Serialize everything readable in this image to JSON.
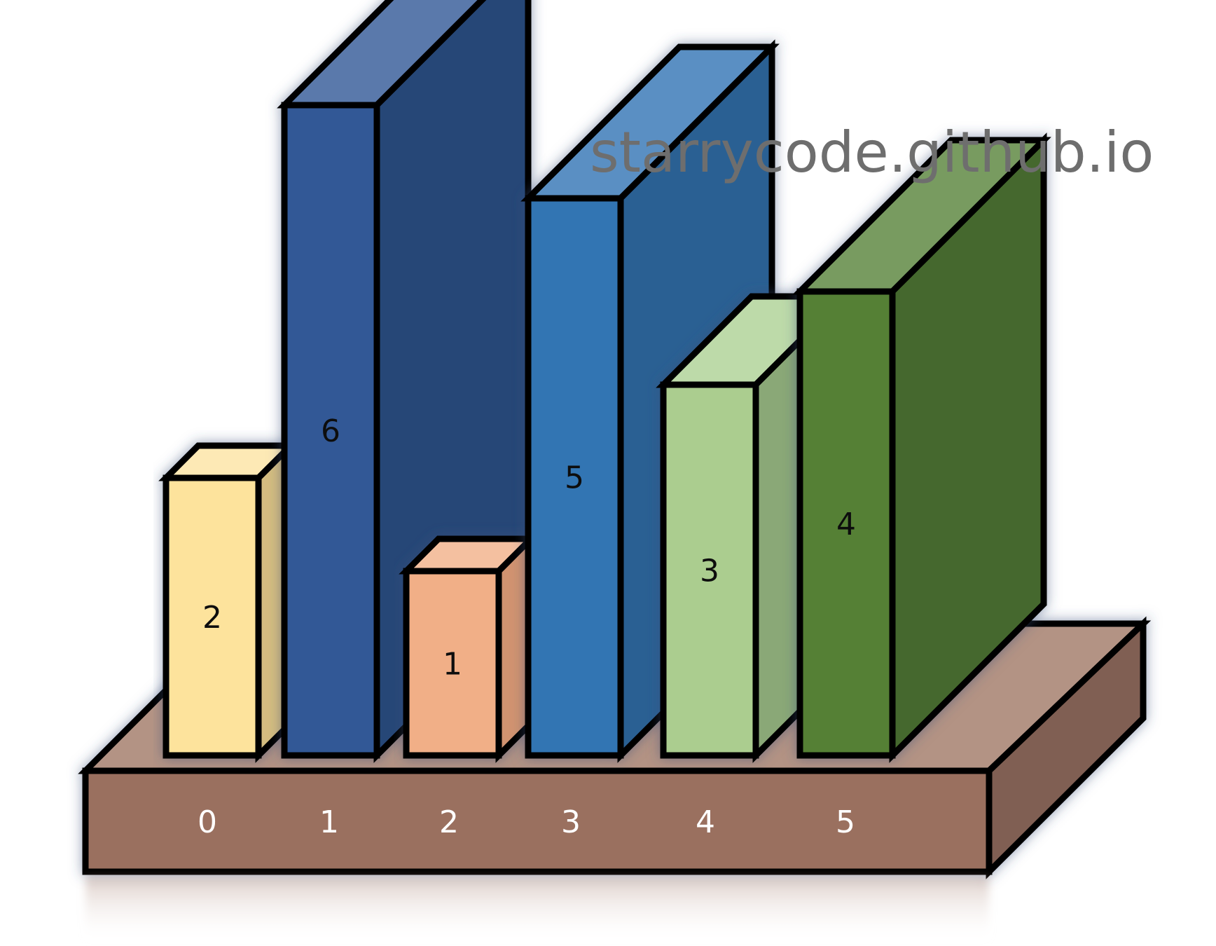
{
  "watermark": "starrycode.github.io",
  "colors": {
    "base_top": "#b39384",
    "base_front": "#9a6f5e",
    "base_side": "#805e52",
    "outline": "#000000"
  },
  "bars": [
    {
      "index": "0",
      "value": 2,
      "label": "2",
      "front": "#fde39c",
      "top": "#fde9b5",
      "side": "#d5bd80"
    },
    {
      "index": "1",
      "value": 6,
      "label": "6",
      "front": "#315896",
      "top": "#5a79ab",
      "side": "#284677"
    },
    {
      "index": "2",
      "value": 1,
      "label": "1",
      "front": "#f1af87",
      "top": "#f4c0a0",
      "side": "#d19370"
    },
    {
      "index": "3",
      "value": 5,
      "label": "5",
      "front": "#3274b3",
      "top": "#5a8fc3",
      "side": "#2a6093"
    },
    {
      "index": "4",
      "value": 3,
      "label": "3",
      "front": "#abcd8f",
      "top": "#bddaa9",
      "side": "#8aa877"
    },
    {
      "index": "5",
      "value": 4,
      "label": "4",
      "front": "#548035",
      "top": "#789b61",
      "side": "#45682d"
    }
  ]
}
